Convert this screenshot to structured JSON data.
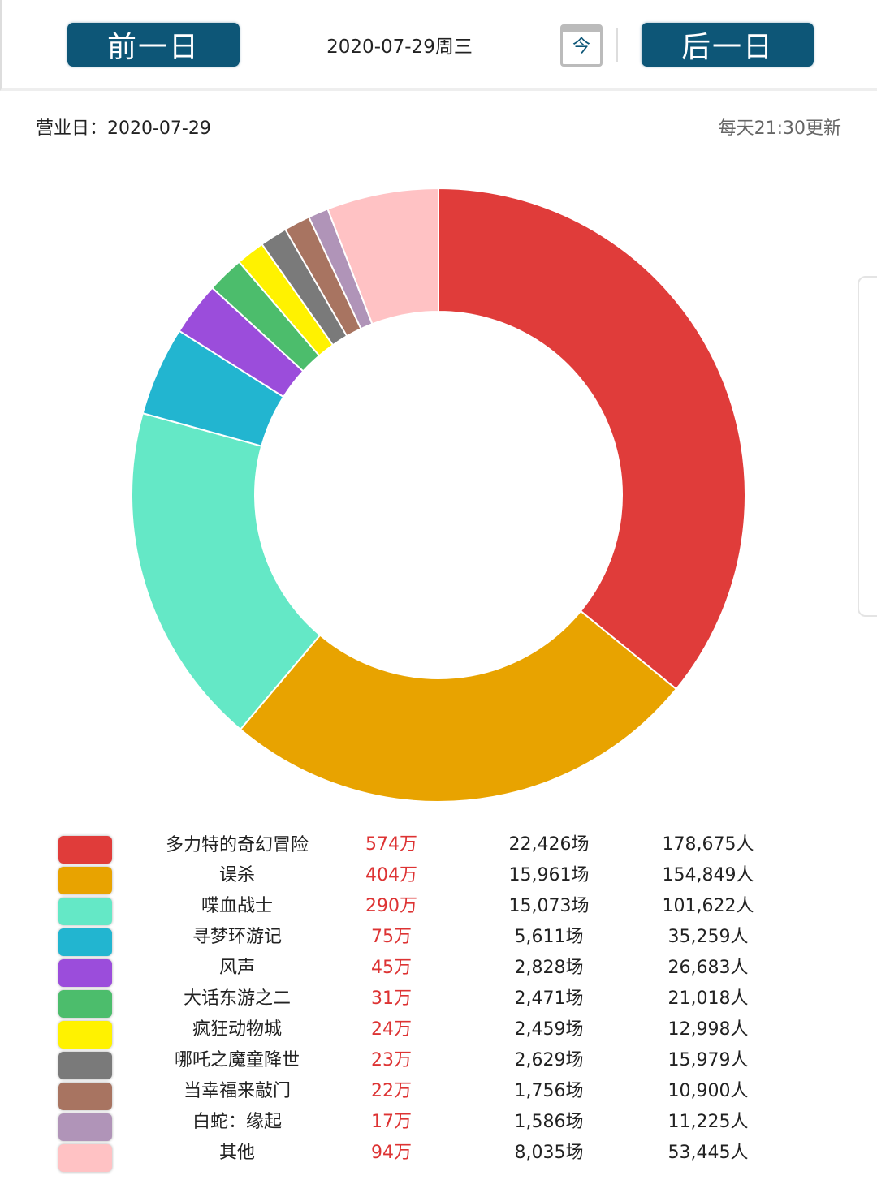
{
  "header": {
    "prev_label": "前一日",
    "date": "2020-07-29周三",
    "today_label": "今",
    "next_label": "后一日"
  },
  "info": {
    "business_day": "营业日：2020-07-29",
    "update_note": "每天21:30更新"
  },
  "chart_data": {
    "type": "pie",
    "donut": true,
    "legend": "bottom-table",
    "rows": [
      {
        "name": "多力特的奇幻冒险",
        "box_office": "574万",
        "value": 574,
        "screenings": "22,426场",
        "audience": "178,675人",
        "color": "#e03c3a"
      },
      {
        "name": "误杀",
        "box_office": "404万",
        "value": 404,
        "screenings": "15,961场",
        "audience": "154,849人",
        "color": "#e8a300"
      },
      {
        "name": "喋血战士",
        "box_office": "290万",
        "value": 290,
        "screenings": "15,073场",
        "audience": "101,622人",
        "color": "#64e8c6"
      },
      {
        "name": "寻梦环游记",
        "box_office": "75万",
        "value": 75,
        "screenings": "5,611场",
        "audience": "35,259人",
        "color": "#22b5d0"
      },
      {
        "name": "风声",
        "box_office": "45万",
        "value": 45,
        "screenings": "2,828场",
        "audience": "26,683人",
        "color": "#9b4ddb"
      },
      {
        "name": "大话东游之二",
        "box_office": "31万",
        "value": 31,
        "screenings": "2,471场",
        "audience": "21,018人",
        "color": "#4cbd6c"
      },
      {
        "name": "疯狂动物城",
        "box_office": "24万",
        "value": 24,
        "screenings": "2,459场",
        "audience": "12,998人",
        "color": "#fff200"
      },
      {
        "name": "哪吒之魔童降世",
        "box_office": "23万",
        "value": 23,
        "screenings": "2,629场",
        "audience": "15,979人",
        "color": "#7a7a7a"
      },
      {
        "name": "当幸福来敲门",
        "box_office": "22万",
        "value": 22,
        "screenings": "1,756场",
        "audience": "10,900人",
        "color": "#a87461"
      },
      {
        "name": "白蛇：缘起",
        "box_office": "17万",
        "value": 17,
        "screenings": "1,586场",
        "audience": "11,225人",
        "color": "#b094b8"
      },
      {
        "name": "其他",
        "box_office": "94万",
        "value": 94,
        "screenings": "8,035场",
        "audience": "53,445人",
        "color": "#ffc2c4"
      }
    ]
  }
}
